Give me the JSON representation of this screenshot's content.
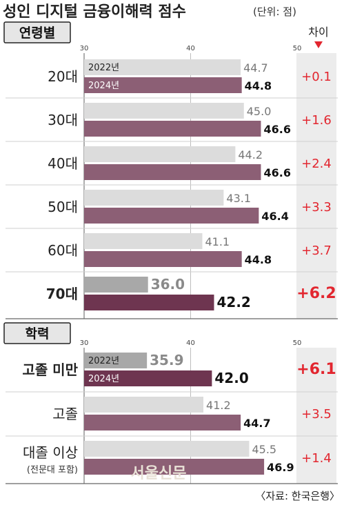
{
  "title": "성인 디지털 금융이해력 점수",
  "unit": "(단위: 점)",
  "diff_header": "차이",
  "source": "〈자료: 한국은행〉",
  "watermark": "서울신문",
  "colors": {
    "bar_2022": "#dcdcdc",
    "bar_2024": "#8c5f75",
    "bar_2022_highlight": "#a8a8a8",
    "bar_2024_highlight": "#6e3550",
    "diff_text": "#e2262f",
    "diff_panel": "#ececec",
    "section_label_bg": "#e6e6e6",
    "grid": "#bdbdbd"
  },
  "chart_data": [
    {
      "type": "bar",
      "orientation": "horizontal",
      "section_label": "연령별",
      "xlim": [
        30,
        50
      ],
      "ticks": [
        "30",
        "40",
        "50"
      ],
      "categories": [
        "20대",
        "30대",
        "40대",
        "50대",
        "60대",
        "70대"
      ],
      "highlight": "70대",
      "series": [
        {
          "name": "2022년",
          "values": [
            44.7,
            45.0,
            44.2,
            43.1,
            41.1,
            36.0
          ],
          "labels": [
            "44.7",
            "45.0",
            "44.2",
            "43.1",
            "41.1",
            "36.0"
          ]
        },
        {
          "name": "2024년",
          "values": [
            44.8,
            46.6,
            46.6,
            46.4,
            44.8,
            42.2
          ],
          "labels": [
            "44.8",
            "46.6",
            "46.6",
            "46.4",
            "44.8",
            "42.2"
          ]
        }
      ],
      "diff": [
        "+0.1",
        "+1.6",
        "+2.4",
        "+3.3",
        "+3.7",
        "+6.2"
      ]
    },
    {
      "type": "bar",
      "orientation": "horizontal",
      "section_label": "학력",
      "xlim": [
        30,
        50
      ],
      "ticks": [
        "30",
        "40",
        "50"
      ],
      "categories": [
        "고졸 미만",
        "고졸",
        "대졸 이상"
      ],
      "category_sublabels": [
        "",
        "",
        "(전문대 포함)"
      ],
      "highlight": "고졸 미만",
      "series": [
        {
          "name": "2022년",
          "values": [
            35.9,
            41.2,
            45.5
          ],
          "labels": [
            "35.9",
            "41.2",
            "45.5"
          ]
        },
        {
          "name": "2024년",
          "values": [
            42.0,
            44.7,
            46.9
          ],
          "labels": [
            "42.0",
            "44.7",
            "46.9"
          ]
        }
      ],
      "diff": [
        "+6.1",
        "+3.5",
        "+1.4"
      ]
    }
  ]
}
